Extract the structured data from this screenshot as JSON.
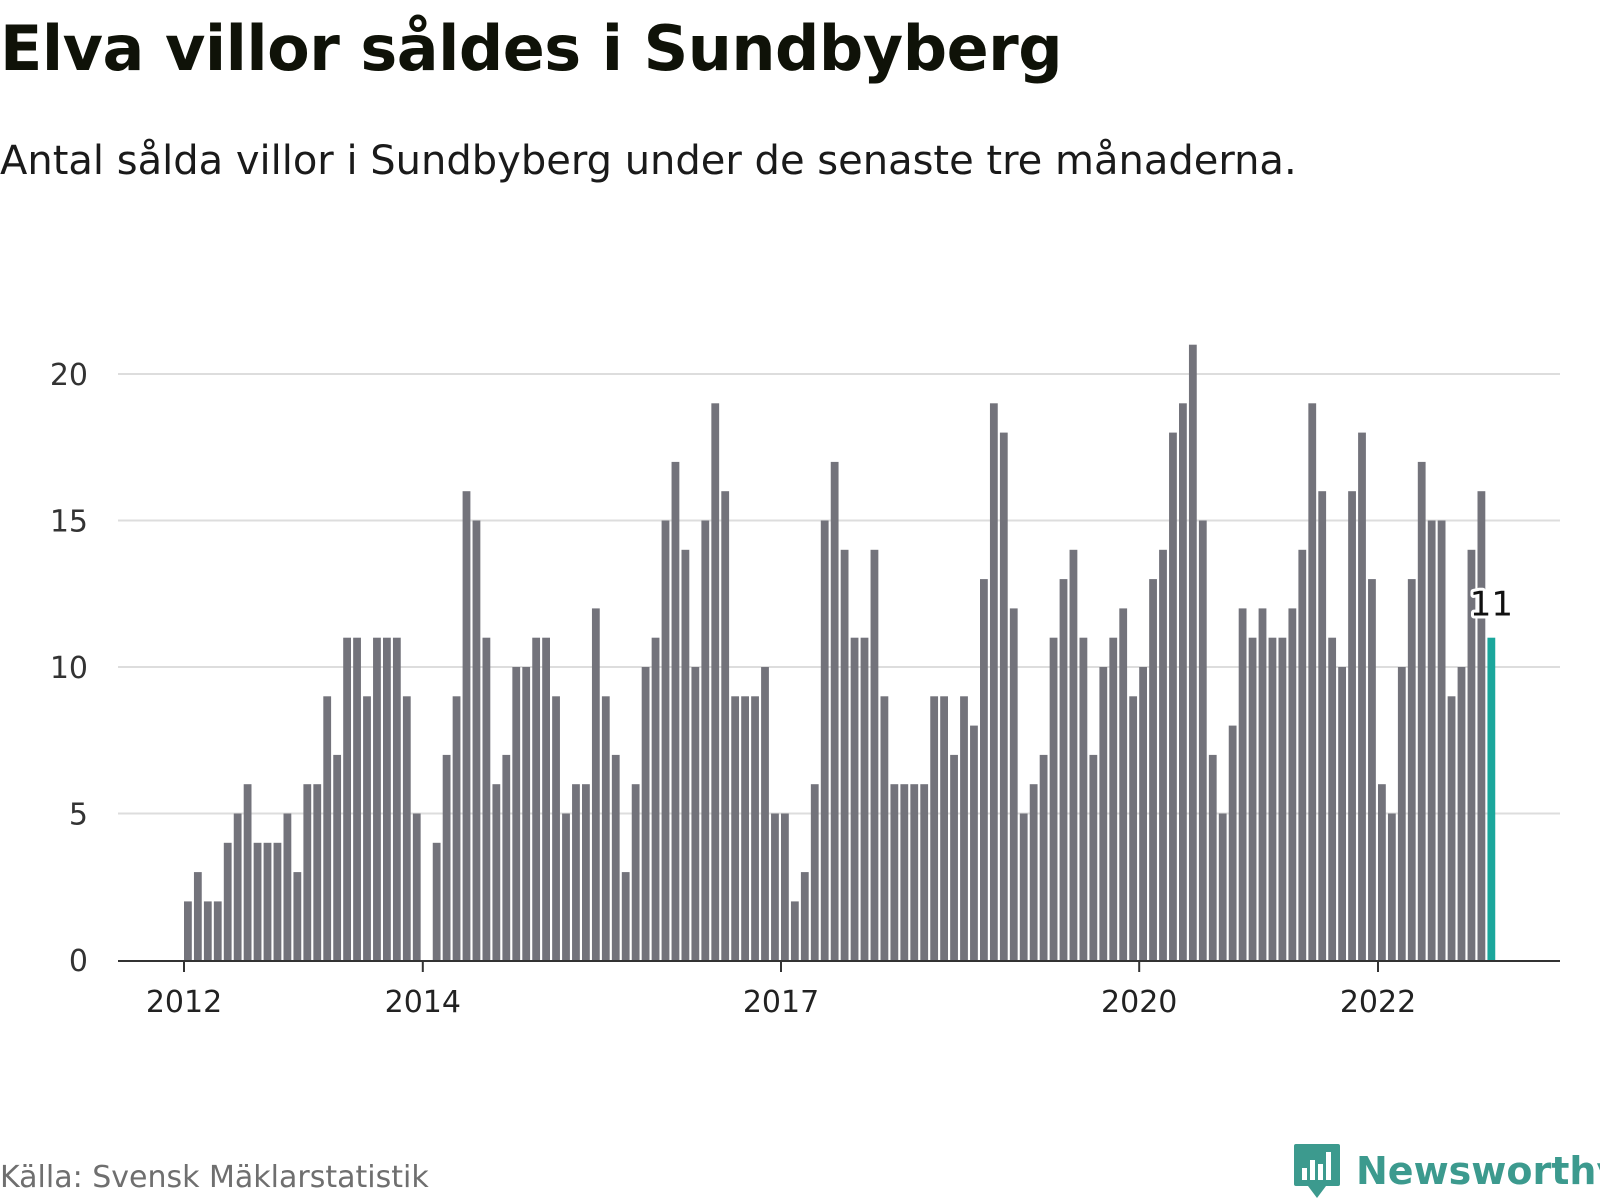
{
  "title": "Elva villor såldes i Sundbyberg",
  "subtitle": "Antal sålda villor i Sundbyberg under de senaste tre månaderna.",
  "source": "Källa: Svensk Mäklarstatistik",
  "brand": "Newsworthy",
  "colors": {
    "bar": "#73737b",
    "highlight": "#1aa79c",
    "grid": "#dddddd",
    "axis": "#333333",
    "brand": "#3c9a8e"
  },
  "chart_data": {
    "type": "bar",
    "x_start": "2012-01",
    "x_end": "2023-03",
    "x_ticks": [
      "2012",
      "2014",
      "2017",
      "2020",
      "2022"
    ],
    "y_ticks": [
      0,
      5,
      10,
      15,
      20
    ],
    "ylim": [
      0,
      21
    ],
    "grid": true,
    "values": [
      2,
      3,
      2,
      2,
      4,
      5,
      6,
      4,
      4,
      4,
      5,
      3,
      6,
      6,
      9,
      7,
      11,
      11,
      9,
      11,
      11,
      11,
      9,
      5,
      0,
      4,
      7,
      9,
      16,
      15,
      11,
      6,
      7,
      10,
      10,
      11,
      11,
      9,
      5,
      6,
      6,
      12,
      9,
      7,
      3,
      6,
      10,
      11,
      15,
      17,
      14,
      10,
      15,
      19,
      16,
      9,
      9,
      9,
      10,
      5,
      5,
      2,
      3,
      6,
      15,
      17,
      14,
      11,
      11,
      14,
      9,
      6,
      6,
      6,
      6,
      9,
      9,
      7,
      9,
      8,
      13,
      19,
      18,
      12,
      5,
      6,
      7,
      11,
      13,
      14,
      11,
      7,
      10,
      11,
      12,
      9,
      10,
      13,
      14,
      18,
      19,
      21,
      15,
      7,
      5,
      8,
      12,
      11,
      12,
      11,
      11,
      12,
      14,
      19,
      16,
      11,
      10,
      16,
      18,
      13,
      6,
      5,
      10,
      13,
      17,
      15,
      15,
      9,
      10,
      14,
      16,
      11
    ],
    "highlight_label": "11"
  }
}
